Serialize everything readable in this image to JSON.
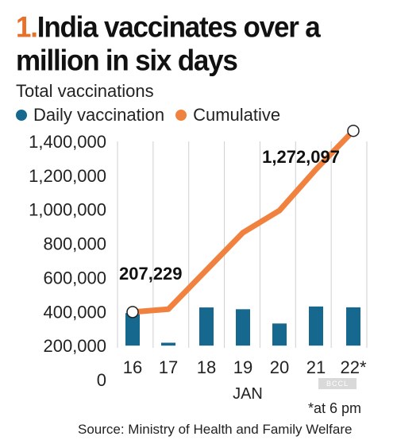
{
  "headline": {
    "number": "1.",
    "text": "India vaccinates over a million in six days"
  },
  "chart_data": {
    "type": "bar+line",
    "title": "1. India vaccinates over a million in six days",
    "ylabel": "Total vaccinations",
    "xlabel": "JAN",
    "categories": [
      "16",
      "17",
      "18",
      "19",
      "20",
      "21",
      "22*"
    ],
    "y_ticks": [
      "0",
      "200,000",
      "400,000",
      "600,000",
      "800,000",
      "1,000,000",
      "1,200,000",
      "1,400,000"
    ],
    "ylim": [
      0,
      1400000
    ],
    "series": [
      {
        "name": "Daily vaccination",
        "type": "bar",
        "color": "#17688f",
        "values": [
          191181,
          17072,
          224301,
          213800,
          130000,
          230000,
          225000
        ]
      },
      {
        "name": "Cumulative",
        "type": "line",
        "color": "#f0813e",
        "values": [
          207229,
          224000,
          454000,
          674000,
          804000,
          1046000,
          1272097
        ]
      }
    ],
    "annotations": [
      {
        "category": "16",
        "text": "207,229"
      },
      {
        "category": "22*",
        "text": "1,272,097"
      }
    ],
    "grid": "vertical",
    "legend": "top-left"
  },
  "footnote": "*at 6 pm",
  "source": "Source:  Ministry of Health and Family Welfare",
  "watermark": "BCCL"
}
